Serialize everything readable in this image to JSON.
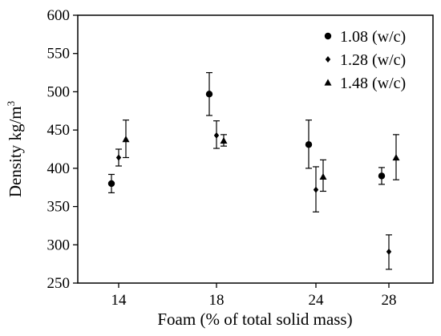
{
  "chart_data": {
    "type": "scatter",
    "title": "",
    "xlabel": "Foam (% of total solid mass)",
    "ylabel_main": "Density kg/m",
    "ylabel_superscript": "3",
    "categories": [
      "14",
      "18",
      "24",
      "28"
    ],
    "ylim": [
      250,
      600
    ],
    "yticks": [
      "250",
      "300",
      "350",
      "400",
      "450",
      "500",
      "550",
      "600"
    ],
    "grid": false,
    "legend_placement": "top-right",
    "series": [
      {
        "name": "1.08 (w/c)",
        "marker": "circle",
        "points": [
          {
            "x": "14",
            "y": 380,
            "err_low": 368,
            "err_high": 392
          },
          {
            "x": "18",
            "y": 497,
            "err_low": 469,
            "err_high": 525
          },
          {
            "x": "24",
            "y": 431,
            "err_low": 400,
            "err_high": 463
          },
          {
            "x": "28",
            "y": 390,
            "err_low": 379,
            "err_high": 401
          }
        ]
      },
      {
        "name": "1.28 (w/c)",
        "marker": "diamond",
        "points": [
          {
            "x": "14",
            "y": 414,
            "err_low": 403,
            "err_high": 425
          },
          {
            "x": "18",
            "y": 443,
            "err_low": 426,
            "err_high": 462
          },
          {
            "x": "24",
            "y": 372,
            "err_low": 343,
            "err_high": 402
          },
          {
            "x": "28",
            "y": 291,
            "err_low": 268,
            "err_high": 313
          }
        ]
      },
      {
        "name": "1.48 (w/c)",
        "marker": "triangle",
        "points": [
          {
            "x": "14",
            "y": 438,
            "err_low": 414,
            "err_high": 463
          },
          {
            "x": "18",
            "y": 436,
            "err_low": 429,
            "err_high": 444
          },
          {
            "x": "24",
            "y": 389,
            "err_low": 370,
            "err_high": 411
          },
          {
            "x": "28",
            "y": 414,
            "err_low": 385,
            "err_high": 444
          }
        ]
      }
    ]
  }
}
